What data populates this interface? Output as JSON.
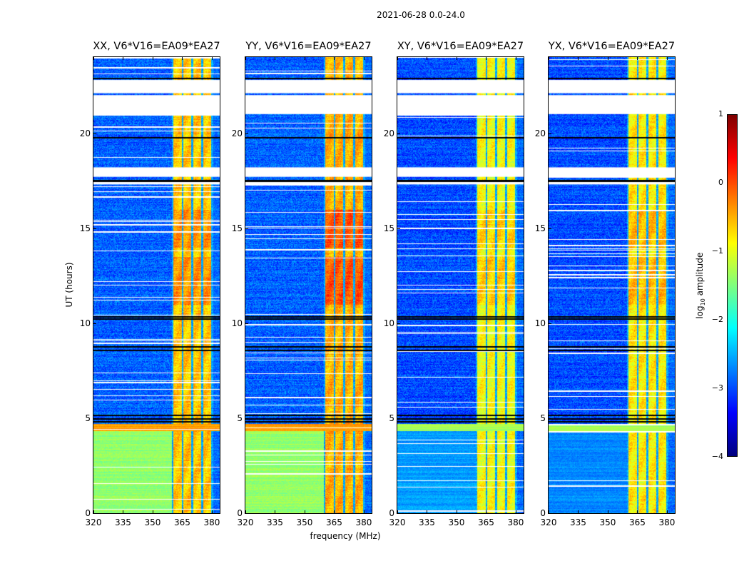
{
  "chart_data": {
    "type": "heatmap",
    "title": "2021-06-28 0.0-24.0",
    "xlabel": "frequency (MHz)",
    "ylabel": "UT (hours)",
    "xlim": [
      320,
      384
    ],
    "ylim": [
      0,
      24
    ],
    "xticks": [
      "320",
      "335",
      "350",
      "365",
      "380"
    ],
    "xtick_values": [
      320,
      335,
      350,
      365,
      380
    ],
    "yticks": [
      "0",
      "5",
      "10",
      "15",
      "20"
    ],
    "ytick_values": [
      0,
      5,
      10,
      15,
      20
    ],
    "colorbar": {
      "label_prefix": "log",
      "label_sub": "10",
      "label_suffix": " amplitude",
      "range": [
        -4,
        1
      ],
      "ticks": [
        "1",
        "0",
        "−1",
        "−2",
        "−3",
        "−4"
      ],
      "tick_values": [
        1,
        0,
        -1,
        -2,
        -3,
        -4
      ],
      "colormap": "jet"
    },
    "bright_subbands_mhz": [
      [
        360.2,
        364.5
      ],
      [
        365.2,
        369.5
      ],
      [
        370.5,
        374.5
      ],
      [
        375.5,
        379.3
      ]
    ],
    "flagged_time_ranges_ut": [
      [
        22.1,
        22.8
      ],
      [
        21.0,
        22.0
      ],
      [
        17.7,
        18.2
      ],
      [
        17.3,
        17.5
      ]
    ],
    "black_line_times_ut": [
      22.9,
      19.8,
      17.55,
      17.5,
      10.35,
      10.25,
      8.8,
      8.6,
      5.2,
      5.0,
      4.85
    ],
    "panels": [
      {
        "title": "XX, V6*V16=EA09*EA27",
        "pol": "XX",
        "background_level": -2.9,
        "early_level": -1.4,
        "band_level": -0.6
      },
      {
        "title": "YY, V6*V16=EA09*EA27",
        "pol": "YY",
        "background_level": -2.9,
        "early_level": -1.4,
        "band_level": -0.5
      },
      {
        "title": "XY, V6*V16=EA09*EA27",
        "pol": "XY",
        "background_level": -3.0,
        "early_level": -2.6,
        "band_level": -0.9
      },
      {
        "title": "YX, V6*V16=EA09*EA27",
        "pol": "YX",
        "background_level": -3.0,
        "early_level": -2.7,
        "band_level": -0.8
      }
    ]
  }
}
